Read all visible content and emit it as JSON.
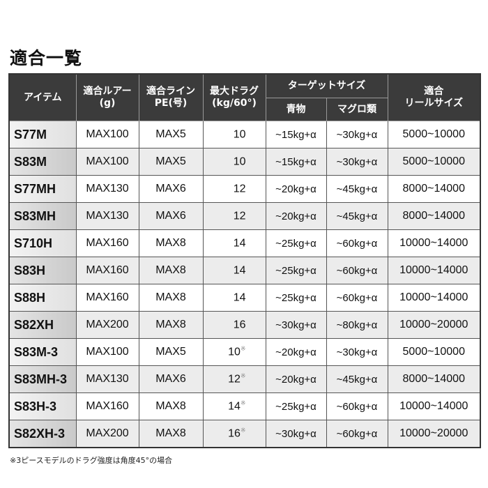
{
  "title": "適合一覧",
  "headers": {
    "item": "アイテム",
    "lure": "適合ルアー\n(g)",
    "lure_l1": "適合ルアー",
    "lure_l2": "(g)",
    "line_l1": "適合ライン",
    "line_l2": "PE(号)",
    "drag_l1": "最大ドラグ",
    "drag_l2": "(kg/60°)",
    "target": "ターゲットサイズ",
    "target_blue": "青物",
    "target_tuna": "マグロ類",
    "reel_l1": "適合",
    "reel_l2": "リールサイズ"
  },
  "rows": [
    {
      "item": "S77M",
      "lure": "MAX100",
      "line": "MAX5",
      "drag": "10",
      "mark": "",
      "blue": "~15kg+α",
      "tuna": "~30kg+α",
      "reel": "5000~10000"
    },
    {
      "item": "S83M",
      "lure": "MAX100",
      "line": "MAX5",
      "drag": "10",
      "mark": "",
      "blue": "~15kg+α",
      "tuna": "~30kg+α",
      "reel": "5000~10000"
    },
    {
      "item": "S77MH",
      "lure": "MAX130",
      "line": "MAX6",
      "drag": "12",
      "mark": "",
      "blue": "~20kg+α",
      "tuna": "~45kg+α",
      "reel": "8000~14000"
    },
    {
      "item": "S83MH",
      "lure": "MAX130",
      "line": "MAX6",
      "drag": "12",
      "mark": "",
      "blue": "~20kg+α",
      "tuna": "~45kg+α",
      "reel": "8000~14000"
    },
    {
      "item": "S710H",
      "lure": "MAX160",
      "line": "MAX8",
      "drag": "14",
      "mark": "",
      "blue": "~25kg+α",
      "tuna": "~60kg+α",
      "reel": "10000~14000"
    },
    {
      "item": "S83H",
      "lure": "MAX160",
      "line": "MAX8",
      "drag": "14",
      "mark": "",
      "blue": "~25kg+α",
      "tuna": "~60kg+α",
      "reel": "10000~14000"
    },
    {
      "item": "S88H",
      "lure": "MAX160",
      "line": "MAX8",
      "drag": "14",
      "mark": "",
      "blue": "~25kg+α",
      "tuna": "~60kg+α",
      "reel": "10000~14000"
    },
    {
      "item": "S82XH",
      "lure": "MAX200",
      "line": "MAX8",
      "drag": "16",
      "mark": "",
      "blue": "~30kg+α",
      "tuna": "~80kg+α",
      "reel": "10000~20000"
    },
    {
      "item": "S83M-3",
      "lure": "MAX100",
      "line": "MAX5",
      "drag": "10",
      "mark": "※",
      "blue": "~20kg+α",
      "tuna": "~30kg+α",
      "reel": "5000~10000"
    },
    {
      "item": "S83MH-3",
      "lure": "MAX130",
      "line": "MAX6",
      "drag": "12",
      "mark": "※",
      "blue": "~20kg+α",
      "tuna": "~45kg+α",
      "reel": "8000~14000"
    },
    {
      "item": "S83H-3",
      "lure": "MAX160",
      "line": "MAX8",
      "drag": "14",
      "mark": "※",
      "blue": "~25kg+α",
      "tuna": "~60kg+α",
      "reel": "10000~14000"
    },
    {
      "item": "S82XH-3",
      "lure": "MAX200",
      "line": "MAX8",
      "drag": "16",
      "mark": "※",
      "blue": "~30kg+α",
      "tuna": "~60kg+α",
      "reel": "10000~20000"
    }
  ],
  "footnote": "※3ピースモデルのドラグ強度は角度45°の場合"
}
